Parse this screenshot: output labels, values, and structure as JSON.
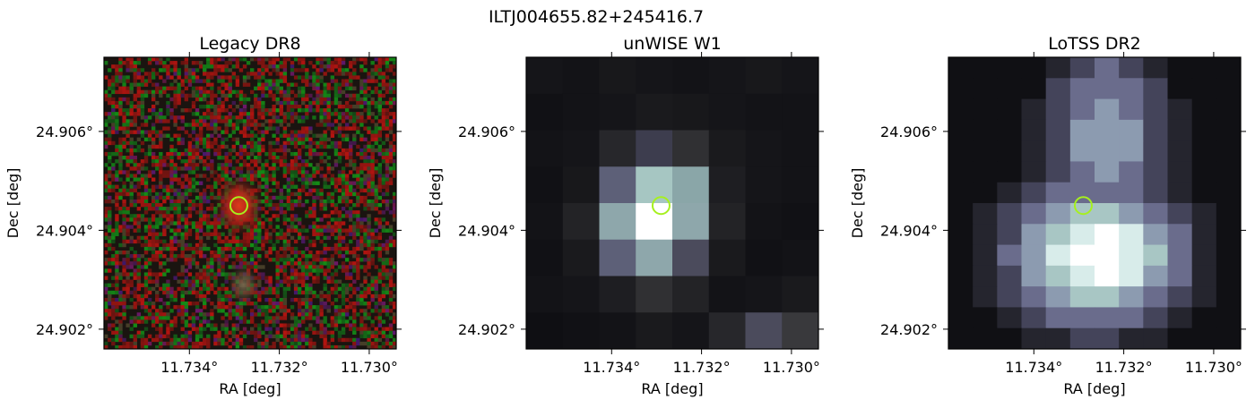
{
  "figure": {
    "title": "ILTJ004655.82+245416.7"
  },
  "colors": {
    "marker": "#a6f01e",
    "frame": "#000000"
  },
  "chart_data": [
    {
      "type": "heatmap",
      "title": "Legacy DR8",
      "xlabel": "RA [deg]",
      "ylabel": "Dec [deg]",
      "xlim": [
        11.7359,
        11.7294
      ],
      "ylim": [
        24.9016,
        24.9075
      ],
      "xticks": [
        11.734,
        11.732,
        11.73
      ],
      "xtick_labels": [
        "11.734°",
        "11.732°",
        "11.730°"
      ],
      "yticks": [
        24.902,
        24.904,
        24.906
      ],
      "ytick_labels": [
        "24.902°",
        "24.904°",
        "24.906°"
      ],
      "image": "noisy RGB optical cutout (red/green speckle) with a compact red source at the marker and a fainter source to the south",
      "marker": {
        "ra": 11.7329,
        "dec": 24.9045,
        "shape": "circle"
      }
    },
    {
      "type": "heatmap",
      "title": "unWISE W1",
      "xlabel": "RA [deg]",
      "ylabel": "Dec [deg]",
      "xlim": [
        11.7359,
        11.7294
      ],
      "ylim": [
        24.9016,
        24.9075
      ],
      "xticks": [
        11.734,
        11.732,
        11.73
      ],
      "xtick_labels": [
        "11.734°",
        "11.732°",
        "11.730°"
      ],
      "yticks": [
        24.902,
        24.904,
        24.906
      ],
      "ytick_labels": [
        "24.902°",
        "24.904°",
        "24.906°"
      ],
      "image": "coarse-pixel infrared cutout, bright pixel at the marker position",
      "marker": {
        "ra": 11.7329,
        "dec": 24.9045,
        "shape": "circle"
      }
    },
    {
      "type": "heatmap",
      "title": "LoTSS DR2",
      "xlabel": "RA [deg]",
      "ylabel": "Dec [deg]",
      "xlim": [
        11.7359,
        11.7294
      ],
      "ylim": [
        24.9016,
        24.9075
      ],
      "xticks": [
        11.734,
        11.732,
        11.73
      ],
      "xtick_labels": [
        "11.734°",
        "11.732°",
        "11.730°"
      ],
      "yticks": [
        24.902,
        24.904,
        24.906
      ],
      "ytick_labels": [
        "24.902°",
        "24.904°",
        "24.906°"
      ],
      "image": "radio cutout, extended emission peaking just south of the marker and elongated to the north",
      "marker": {
        "ra": 11.7329,
        "dec": 24.9045,
        "shape": "circle"
      }
    }
  ]
}
